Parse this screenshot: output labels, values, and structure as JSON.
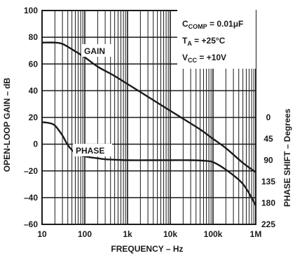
{
  "chart_data": {
    "type": "line",
    "xlabel": "FREQUENCY – Hz",
    "ylabel": "OPEN-LOOP GAIN – dB",
    "y2label": "PHASE SHIFT – Degrees",
    "x_scale": "log",
    "xlim": [
      10,
      1000000
    ],
    "ylim": [
      -60,
      100
    ],
    "y2lim": [
      225,
      0
    ],
    "x_tick_labels": [
      "10",
      "100",
      "1k",
      "10k",
      "100k",
      "1M"
    ],
    "x_ticks": [
      10,
      100,
      1000,
      10000,
      100000,
      1000000
    ],
    "y_ticks": [
      100,
      80,
      60,
      40,
      20,
      0,
      -20,
      -40,
      -60
    ],
    "y_tick_labels": [
      "100",
      "80",
      "60",
      "40",
      "20",
      "0",
      "–20",
      "–40",
      "–60"
    ],
    "y2_ticks": [
      0,
      45,
      90,
      135,
      180,
      225
    ],
    "grid": true,
    "annotations": {
      "conditions": [
        {
          "text": "C",
          "sub": "COMP",
          "rest": " = 0.01μF"
        },
        {
          "text": "T",
          "sub": "A",
          "rest": " = +25°C"
        },
        {
          "text": "V",
          "sub": "CC",
          "rest": " = +10V"
        }
      ],
      "gain_label": "GAIN",
      "phase_label": "PHASE"
    },
    "series": [
      {
        "name": "GAIN",
        "axis": "left",
        "x": [
          10,
          20,
          30,
          50,
          100,
          200,
          500,
          1000,
          2000,
          5000,
          10000,
          20000,
          50000,
          100000,
          200000,
          500000,
          1000000
        ],
        "y": [
          76,
          76,
          75,
          71,
          65,
          58,
          51,
          45,
          39,
          31,
          25,
          19,
          11,
          4,
          -3,
          -14,
          -21
        ]
      },
      {
        "name": "PHASE",
        "axis": "right",
        "x": [
          10,
          15,
          20,
          30,
          40,
          60,
          100,
          200,
          300,
          500,
          1000,
          3000,
          10000,
          30000,
          60000,
          100000,
          200000,
          500000,
          1000000
        ],
        "y": [
          10,
          12,
          17,
          38,
          58,
          75,
          82,
          86,
          88,
          89,
          90,
          90,
          90,
          90,
          91,
          94,
          110,
          140,
          185
        ]
      }
    ]
  }
}
